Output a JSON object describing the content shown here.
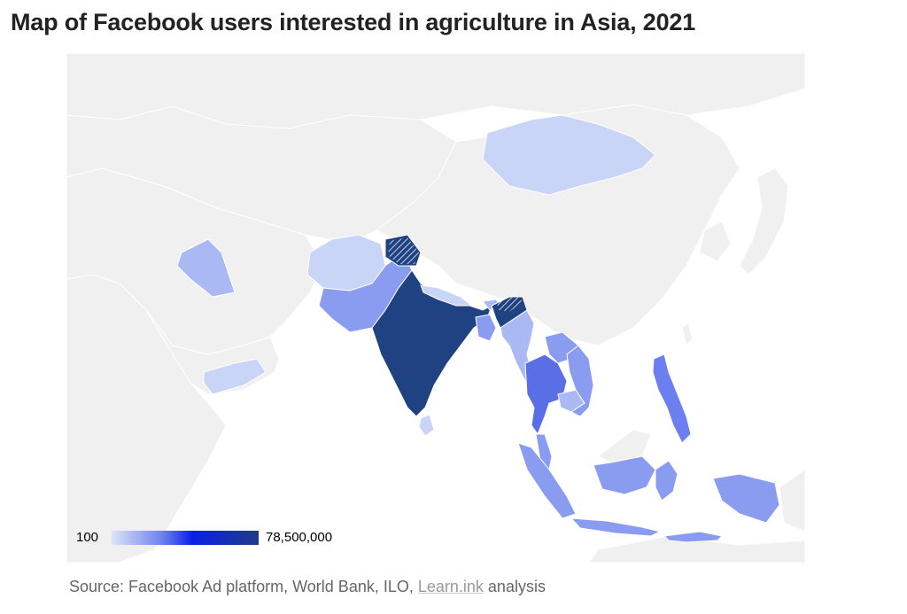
{
  "title": "Map of Facebook users interested in agriculture in Asia, 2021",
  "legend": {
    "min_label": "100",
    "max_label": "78,500,000",
    "min": 100,
    "max": 78500000,
    "gradient_colors": [
      "#dce3f9",
      "#6b7ff0",
      "#0a1fe8",
      "#1f3c88"
    ]
  },
  "colors": {
    "no_data": "#f0f0f0",
    "border": "#ffffff",
    "ocean": "#ffffff",
    "very_high": "#1f4283",
    "high": "#5a6fe6",
    "medium": "#8a9cf0",
    "low": "#aab8f3",
    "very_low": "#c9d5f6"
  },
  "source": {
    "prefix": "Source: Facebook Ad platform, World Bank, ILO, ",
    "link": "Learn.ink",
    "suffix": " analysis"
  }
}
